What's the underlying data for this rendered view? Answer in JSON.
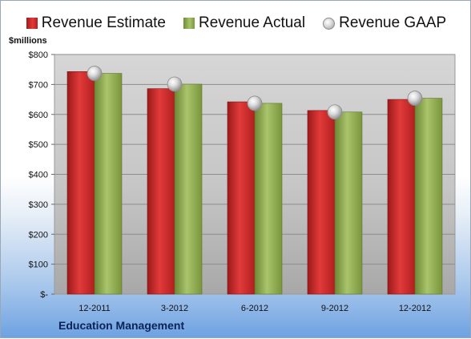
{
  "legend": {
    "estimate": "Revenue Estimate",
    "actual": "Revenue Actual",
    "gaap": "Revenue GAAP"
  },
  "colors": {
    "estimate": "#d42a2a",
    "actual": "#93b05a",
    "gaap": "#c8c8c8",
    "plot_background": "#cdcdcd"
  },
  "chart_data": {
    "type": "bar",
    "title": "",
    "xlabel": "",
    "ylabel": "$millions",
    "ylim": [
      0,
      800
    ],
    "yticks": [
      0,
      100,
      200,
      300,
      400,
      500,
      600,
      700,
      800
    ],
    "ytick_labels": [
      "$-",
      "$100",
      "$200",
      "$300",
      "$400",
      "$500",
      "$600",
      "$700",
      "$800"
    ],
    "categories": [
      "12-2011",
      "3-2012",
      "6-2012",
      "9-2012",
      "12-2012"
    ],
    "series": [
      {
        "name": "Revenue Estimate",
        "values": [
          743,
          686,
          642,
          613,
          650
        ]
      },
      {
        "name": "Revenue Actual",
        "values": [
          737,
          701,
          637,
          608,
          654
        ]
      },
      {
        "name": "Revenue GAAP",
        "marker": "sphere",
        "values": [
          737,
          701,
          637,
          608,
          654
        ]
      }
    ],
    "grid": true,
    "legend_position": "top",
    "annotation": "Education Management"
  }
}
